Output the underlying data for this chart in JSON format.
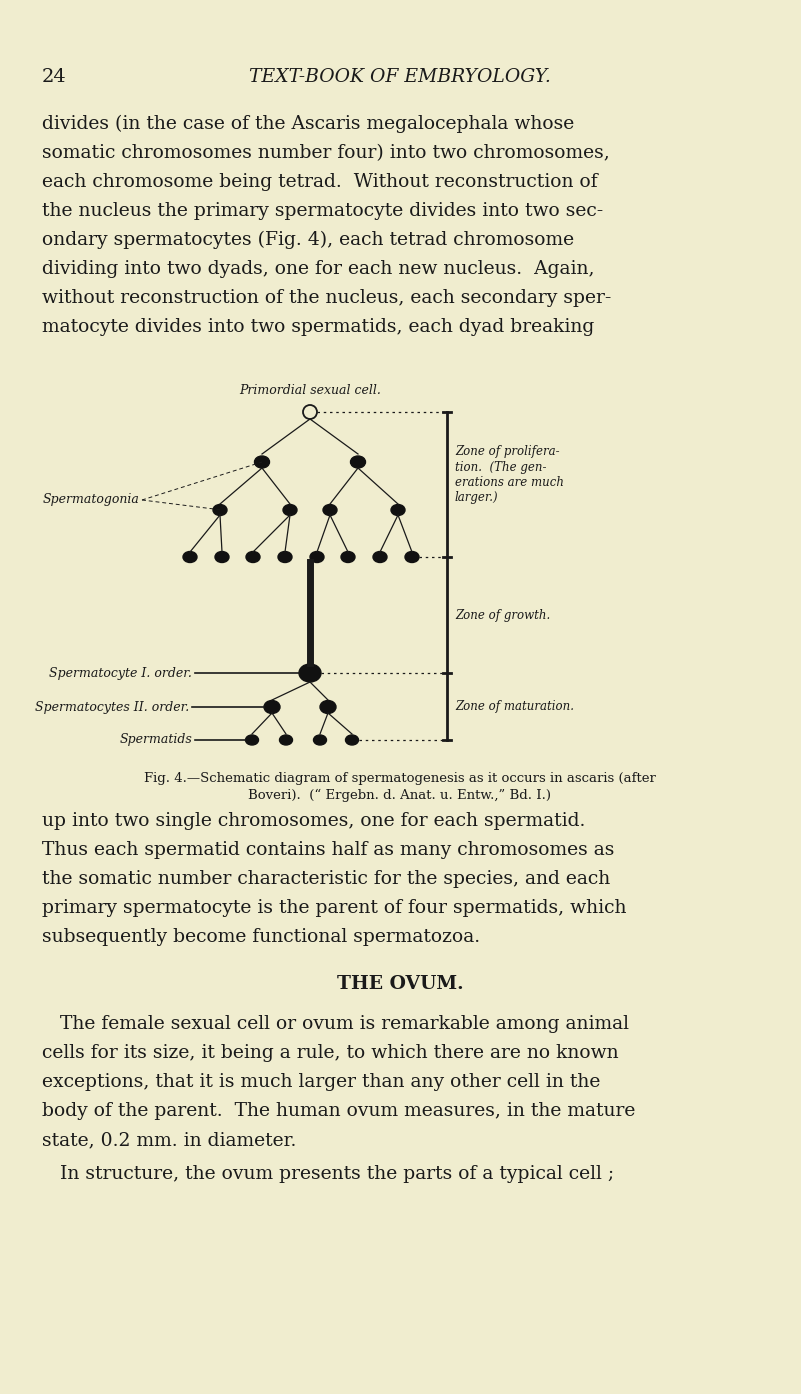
{
  "bg_color": "#f0edcf",
  "page_number": "24",
  "header": "TEXT-BOOK OF EMBRYOLOGY.",
  "body1_lines": [
    "divides (in the case of the Ascaris megalocephala whose",
    "somatic chromosomes number four) into two chromosomes,",
    "each chromosome being tetrad.  Without reconstruction of",
    "the nucleus the primary spermatocyte divides into two sec-",
    "ondary spermatocytes (Fig. 4), each tetrad chromosome",
    "dividing into two dyads, one for each new nucleus.  Again,",
    "without reconstruction of the nucleus, each secondary sper-",
    "matocyte divides into two spermatids, each dyad breaking"
  ],
  "diagram_title": "Primordial sexual cell.",
  "label_spermatogonia": "Spermatogonia",
  "label_zone_prolif": "Zone of prolifera-\ntion.  (The gen-\nerations are much\nlarger.)",
  "label_zone_growth": "Zone of growth.",
  "label_sperm1": "Spermatocyte I. order.",
  "label_sperm2": "Spermatocytes II. order.",
  "label_spermatids": "Spermatids",
  "label_zone_mat": "Zone of maturation.",
  "caption_line1": "Fig. 4.—Schematic diagram of spermatogenesis as it occurs in ascaris (after",
  "caption_line2": "Boveri).  (“ Ergebn. d. Anat. u. Entw.,” Bd. I.)",
  "body2_lines": [
    "up into two single chromosomes, one for each spermatid.",
    "Thus each spermatid contains half as many chromosomes as",
    "the somatic number characteristic for the species, and each",
    "primary spermatocyte is the parent of four spermatids, which",
    "subsequently become functional spermatozoa."
  ],
  "section_header": "THE OVUM.",
  "body3_lines": [
    "The female sexual cell or ovum is remarkable among animal",
    "cells for its size, it being a rule, to which there are no known",
    "exceptions, that it is much larger than any other cell in the",
    "body of the parent.  The human ovum measures, in the mature",
    "state, 0.2 mm. in diameter."
  ],
  "body4_line": "In structure, the ovum presents the parts of a typical cell ;",
  "text_color": "#1a1a1a",
  "line_color": "#1a1a1a",
  "dot_color": "#111111",
  "figw": 8.01,
  "figh": 13.94,
  "dpi": 100
}
